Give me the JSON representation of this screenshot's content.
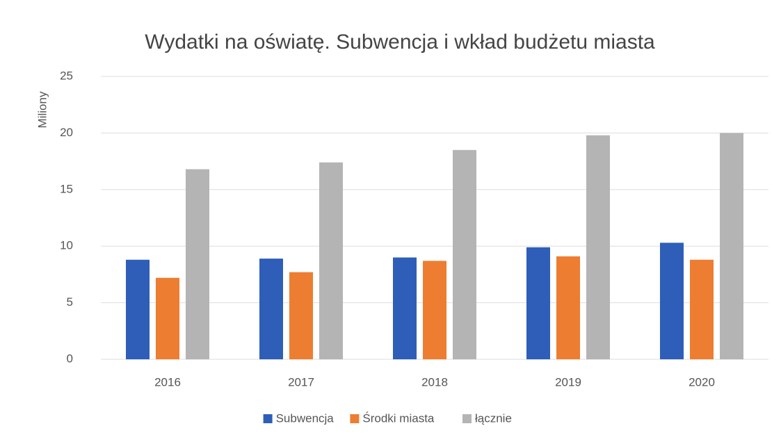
{
  "chart_data": {
    "type": "bar",
    "title": "Wydatki na oświatę. Subwencja i wkład budżetu miasta",
    "y_label": "Miliony",
    "categories": [
      "2016",
      "2017",
      "2018",
      "2019",
      "2020"
    ],
    "series": [
      {
        "name": "Subwencja",
        "color": "#2e5eb8",
        "values": [
          8.8,
          8.9,
          9.0,
          9.9,
          10.3
        ]
      },
      {
        "name": "Środki miasta",
        "color": "#ed7d31",
        "values": [
          7.2,
          7.7,
          8.7,
          9.1,
          8.8
        ]
      },
      {
        "name": "łącznie",
        "color": "#b4b4b4",
        "values": [
          16.8,
          17.4,
          18.5,
          19.8,
          20.0
        ]
      }
    ],
    "ylim": [
      0,
      25
    ],
    "yticks": [
      0,
      5,
      10,
      15,
      20,
      25
    ],
    "grid": true,
    "legend": "bottom"
  }
}
